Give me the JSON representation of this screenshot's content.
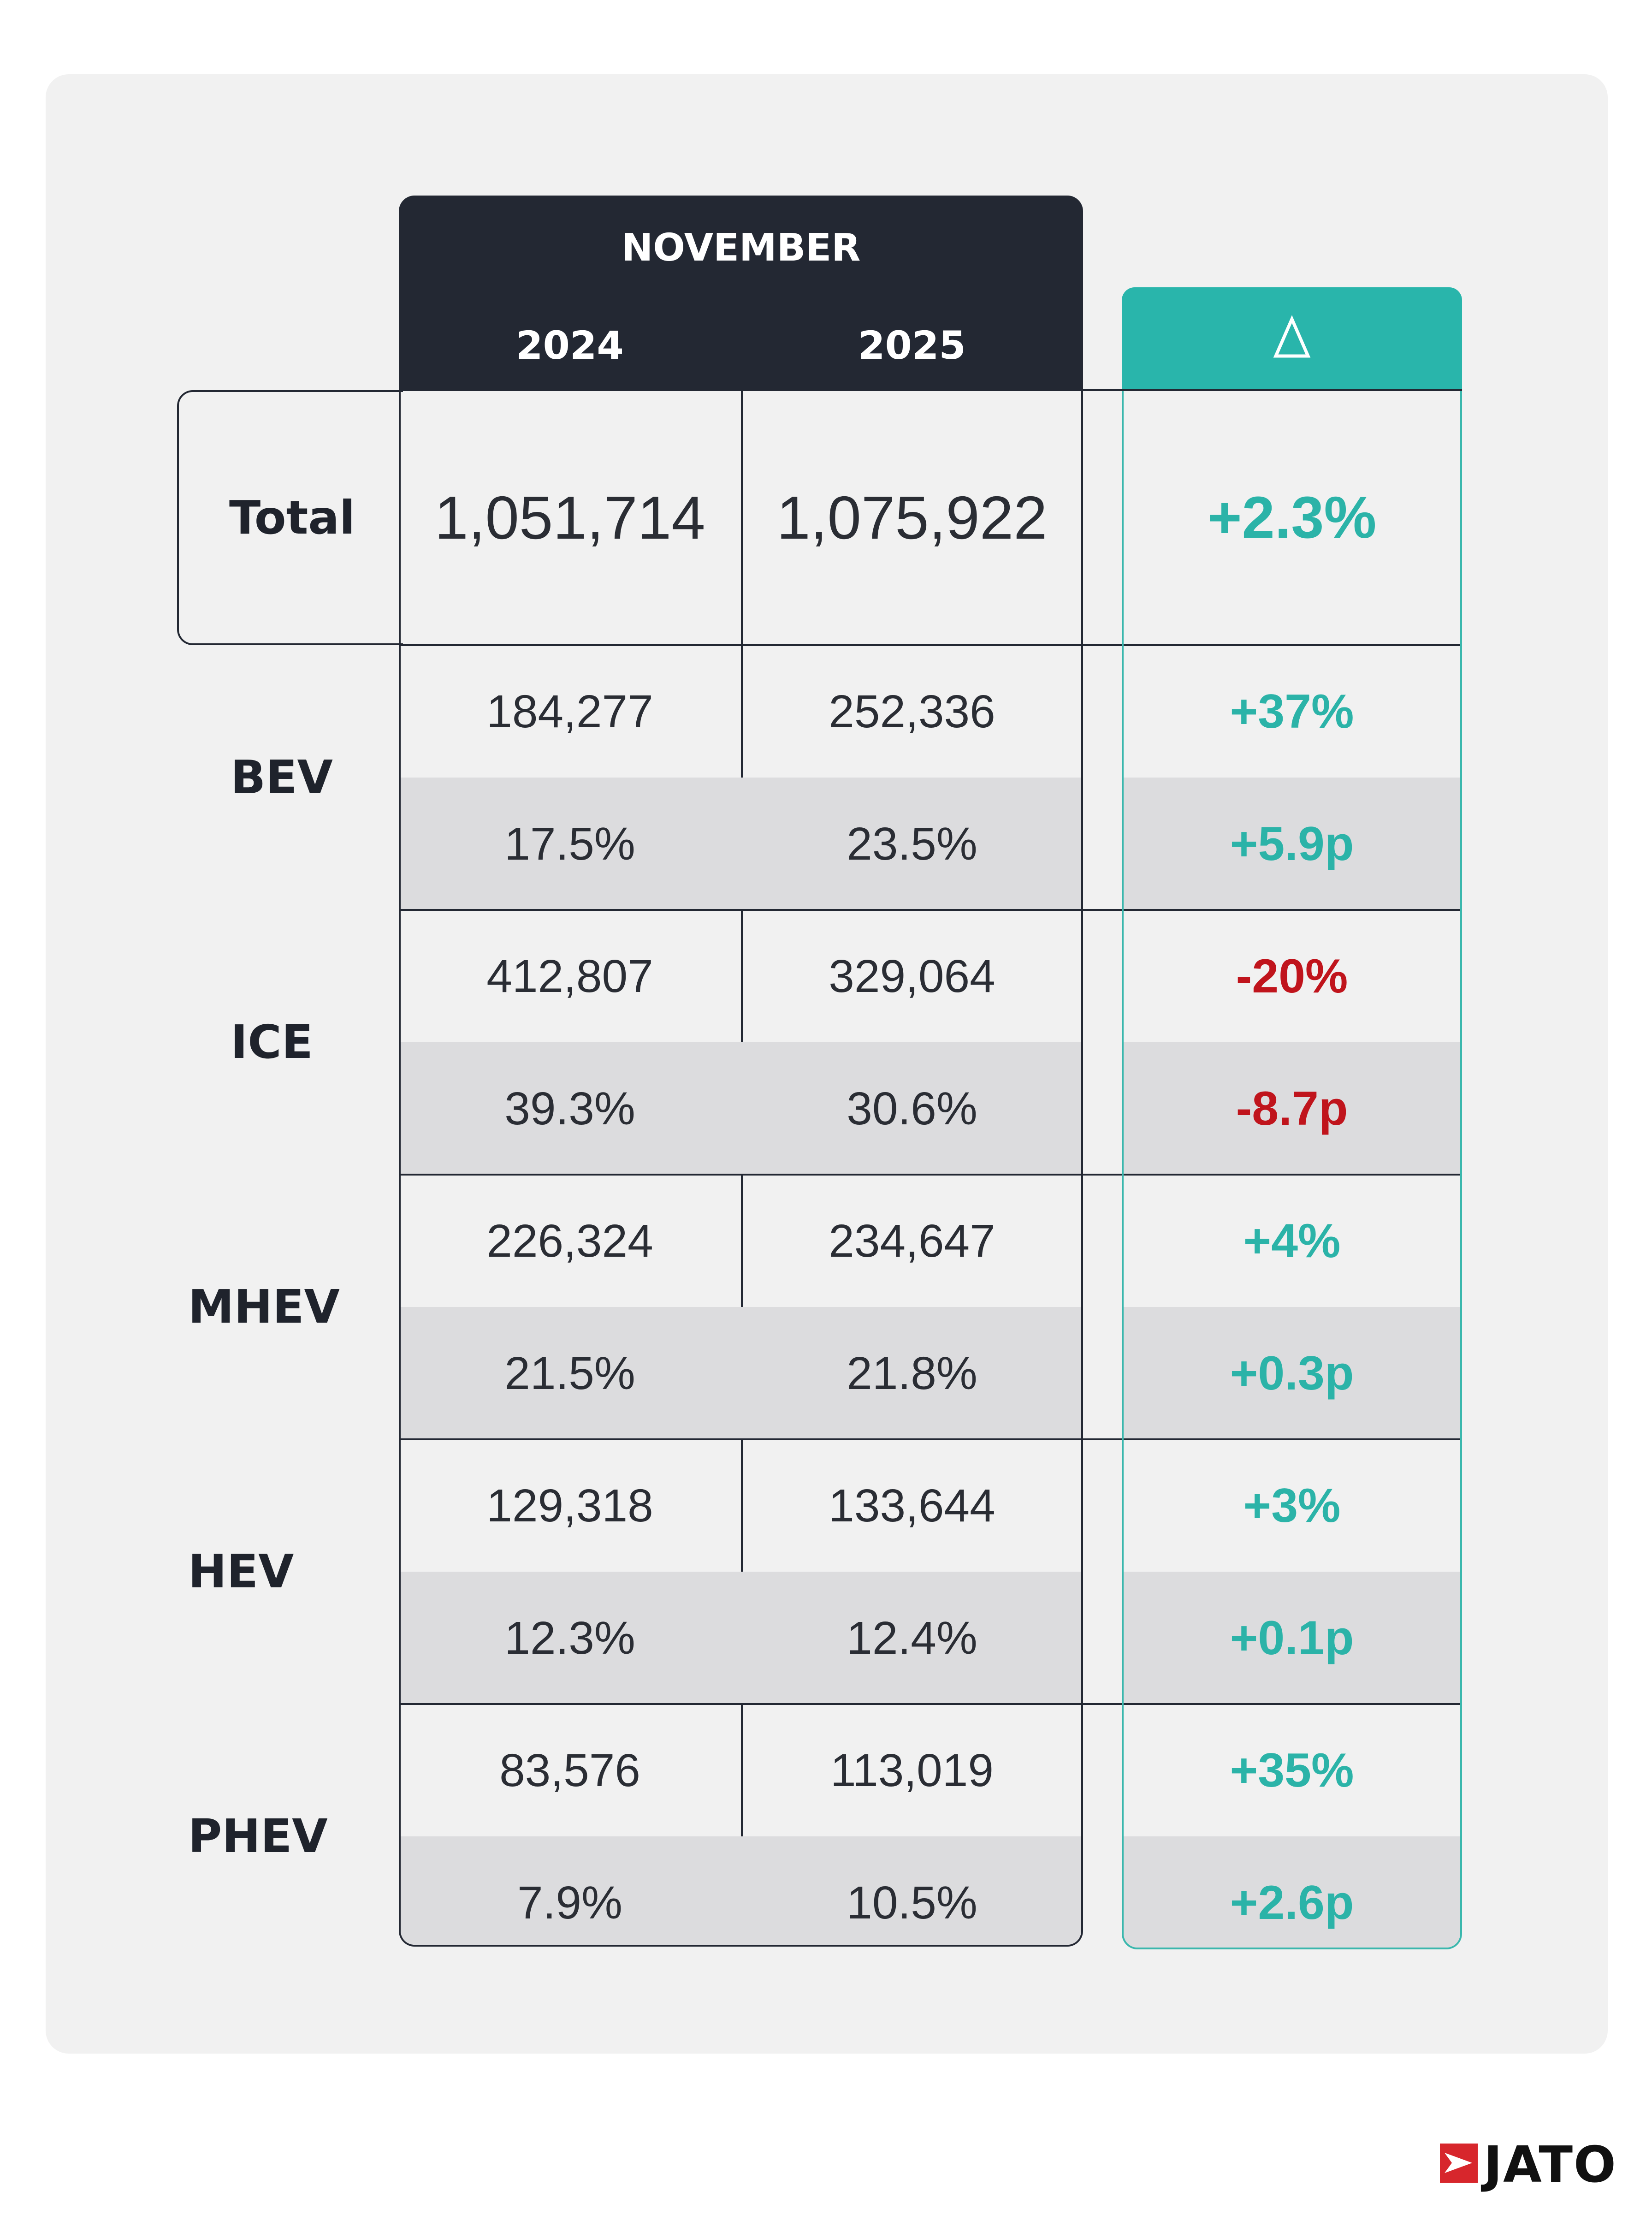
{
  "header": {
    "month": "NOVEMBER",
    "year_1": "2024",
    "year_2": "2025",
    "delta_symbol": "Δ"
  },
  "colors": {
    "dark": "#232833",
    "teal": "#29b5ab",
    "positive": "#2bb3a8",
    "negative": "#c0141c",
    "shade": "#dcdcde"
  },
  "chart_data": {
    "type": "table",
    "title": "NOVEMBER",
    "columns": [
      "2024",
      "2025",
      "Δ"
    ],
    "total": {
      "label": "Total",
      "v2024": "1,051,714",
      "v2025": "1,075,922",
      "delta": "+2.3%",
      "delta_sign": "positive"
    },
    "rows": [
      {
        "label": "BEV",
        "units_2024": "184,277",
        "units_2025": "252,336",
        "units_delta": "+37%",
        "units_sign": "positive",
        "share_2024": "17.5%",
        "share_2025": "23.5%",
        "share_delta": "+5.9p",
        "share_sign": "positive"
      },
      {
        "label": "ICE",
        "units_2024": "412,807",
        "units_2025": "329,064",
        "units_delta": "-20%",
        "units_sign": "negative",
        "share_2024": "39.3%",
        "share_2025": "30.6%",
        "share_delta": "-8.7p",
        "share_sign": "negative"
      },
      {
        "label": "MHEV",
        "units_2024": "226,324",
        "units_2025": "234,647",
        "units_delta": "+4%",
        "units_sign": "positive",
        "share_2024": "21.5%",
        "share_2025": "21.8%",
        "share_delta": "+0.3p",
        "share_sign": "positive"
      },
      {
        "label": "HEV",
        "units_2024": "129,318",
        "units_2025": "133,644",
        "units_delta": "+3%",
        "units_sign": "positive",
        "share_2024": "12.3%",
        "share_2025": "12.4%",
        "share_delta": "+0.1p",
        "share_sign": "positive"
      },
      {
        "label": "PHEV",
        "units_2024": "83,576",
        "units_2025": "113,019",
        "units_delta": "+35%",
        "units_sign": "positive",
        "share_2024": "7.9%",
        "share_2025": "10.5%",
        "share_delta": "+2.6p",
        "share_sign": "positive"
      }
    ]
  },
  "brand": {
    "name": "JATO",
    "icon": "jato-flag-icon"
  }
}
